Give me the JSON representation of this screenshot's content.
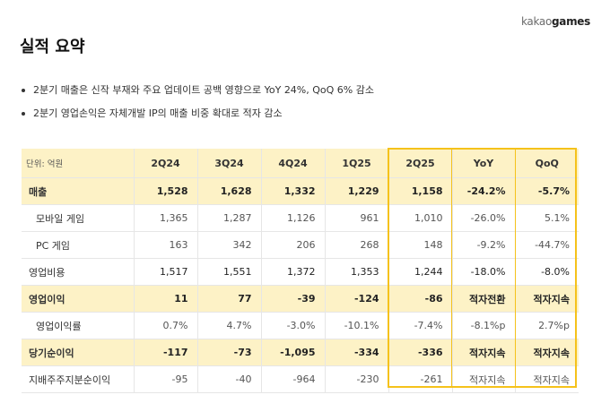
{
  "logo": {
    "part1": "kakao",
    "part2": "games"
  },
  "title": "실적 요약",
  "bullets": [
    "2분기 매출은 신작 부재와 주요 업데이트 공백 영향으로 YoY 24%, QoQ 6% 감소",
    "2분기 영업손익은 자체개발 IP의 매출 비중 확대로 적자 감소"
  ],
  "table": {
    "unit_label": "단위: 억원",
    "headers": [
      "2Q24",
      "3Q24",
      "4Q24",
      "1Q25",
      "2Q25",
      "YoY",
      "QoQ"
    ],
    "rows": [
      {
        "label": "매출",
        "values": [
          "1,528",
          "1,628",
          "1,332",
          "1,229",
          "1,158",
          "-24.2%",
          "-5.7%"
        ]
      },
      {
        "label": "모바일 게임",
        "values": [
          "1,365",
          "1,287",
          "1,126",
          "961",
          "1,010",
          "-26.0%",
          "5.1%"
        ]
      },
      {
        "label": "PC 게임",
        "values": [
          "163",
          "342",
          "206",
          "268",
          "148",
          "-9.2%",
          "-44.7%"
        ]
      },
      {
        "label": "영업비용",
        "values": [
          "1,517",
          "1,551",
          "1,372",
          "1,353",
          "1,244",
          "-18.0%",
          "-8.0%"
        ]
      },
      {
        "label": "영업이익",
        "values": [
          "11",
          "77",
          "-39",
          "-124",
          "-86",
          "적자전환",
          "적자지속"
        ]
      },
      {
        "label": "영업이익률",
        "values": [
          "0.7%",
          "4.7%",
          "-3.0%",
          "-10.1%",
          "-7.4%",
          "-8.1%p",
          "2.7%p"
        ]
      },
      {
        "label": "당기순이익",
        "values": [
          "-117",
          "-73",
          "-1,095",
          "-334",
          "-336",
          "적자지속",
          "적자지속"
        ]
      },
      {
        "label": "지배주주지분순이익",
        "values": [
          "-95",
          "-40",
          "-964",
          "-230",
          "-261",
          "적자지속",
          "적자지속"
        ]
      }
    ]
  },
  "colors": {
    "highlight_fill": "#fdf2c6",
    "highlight_border": "#f5c21b"
  }
}
